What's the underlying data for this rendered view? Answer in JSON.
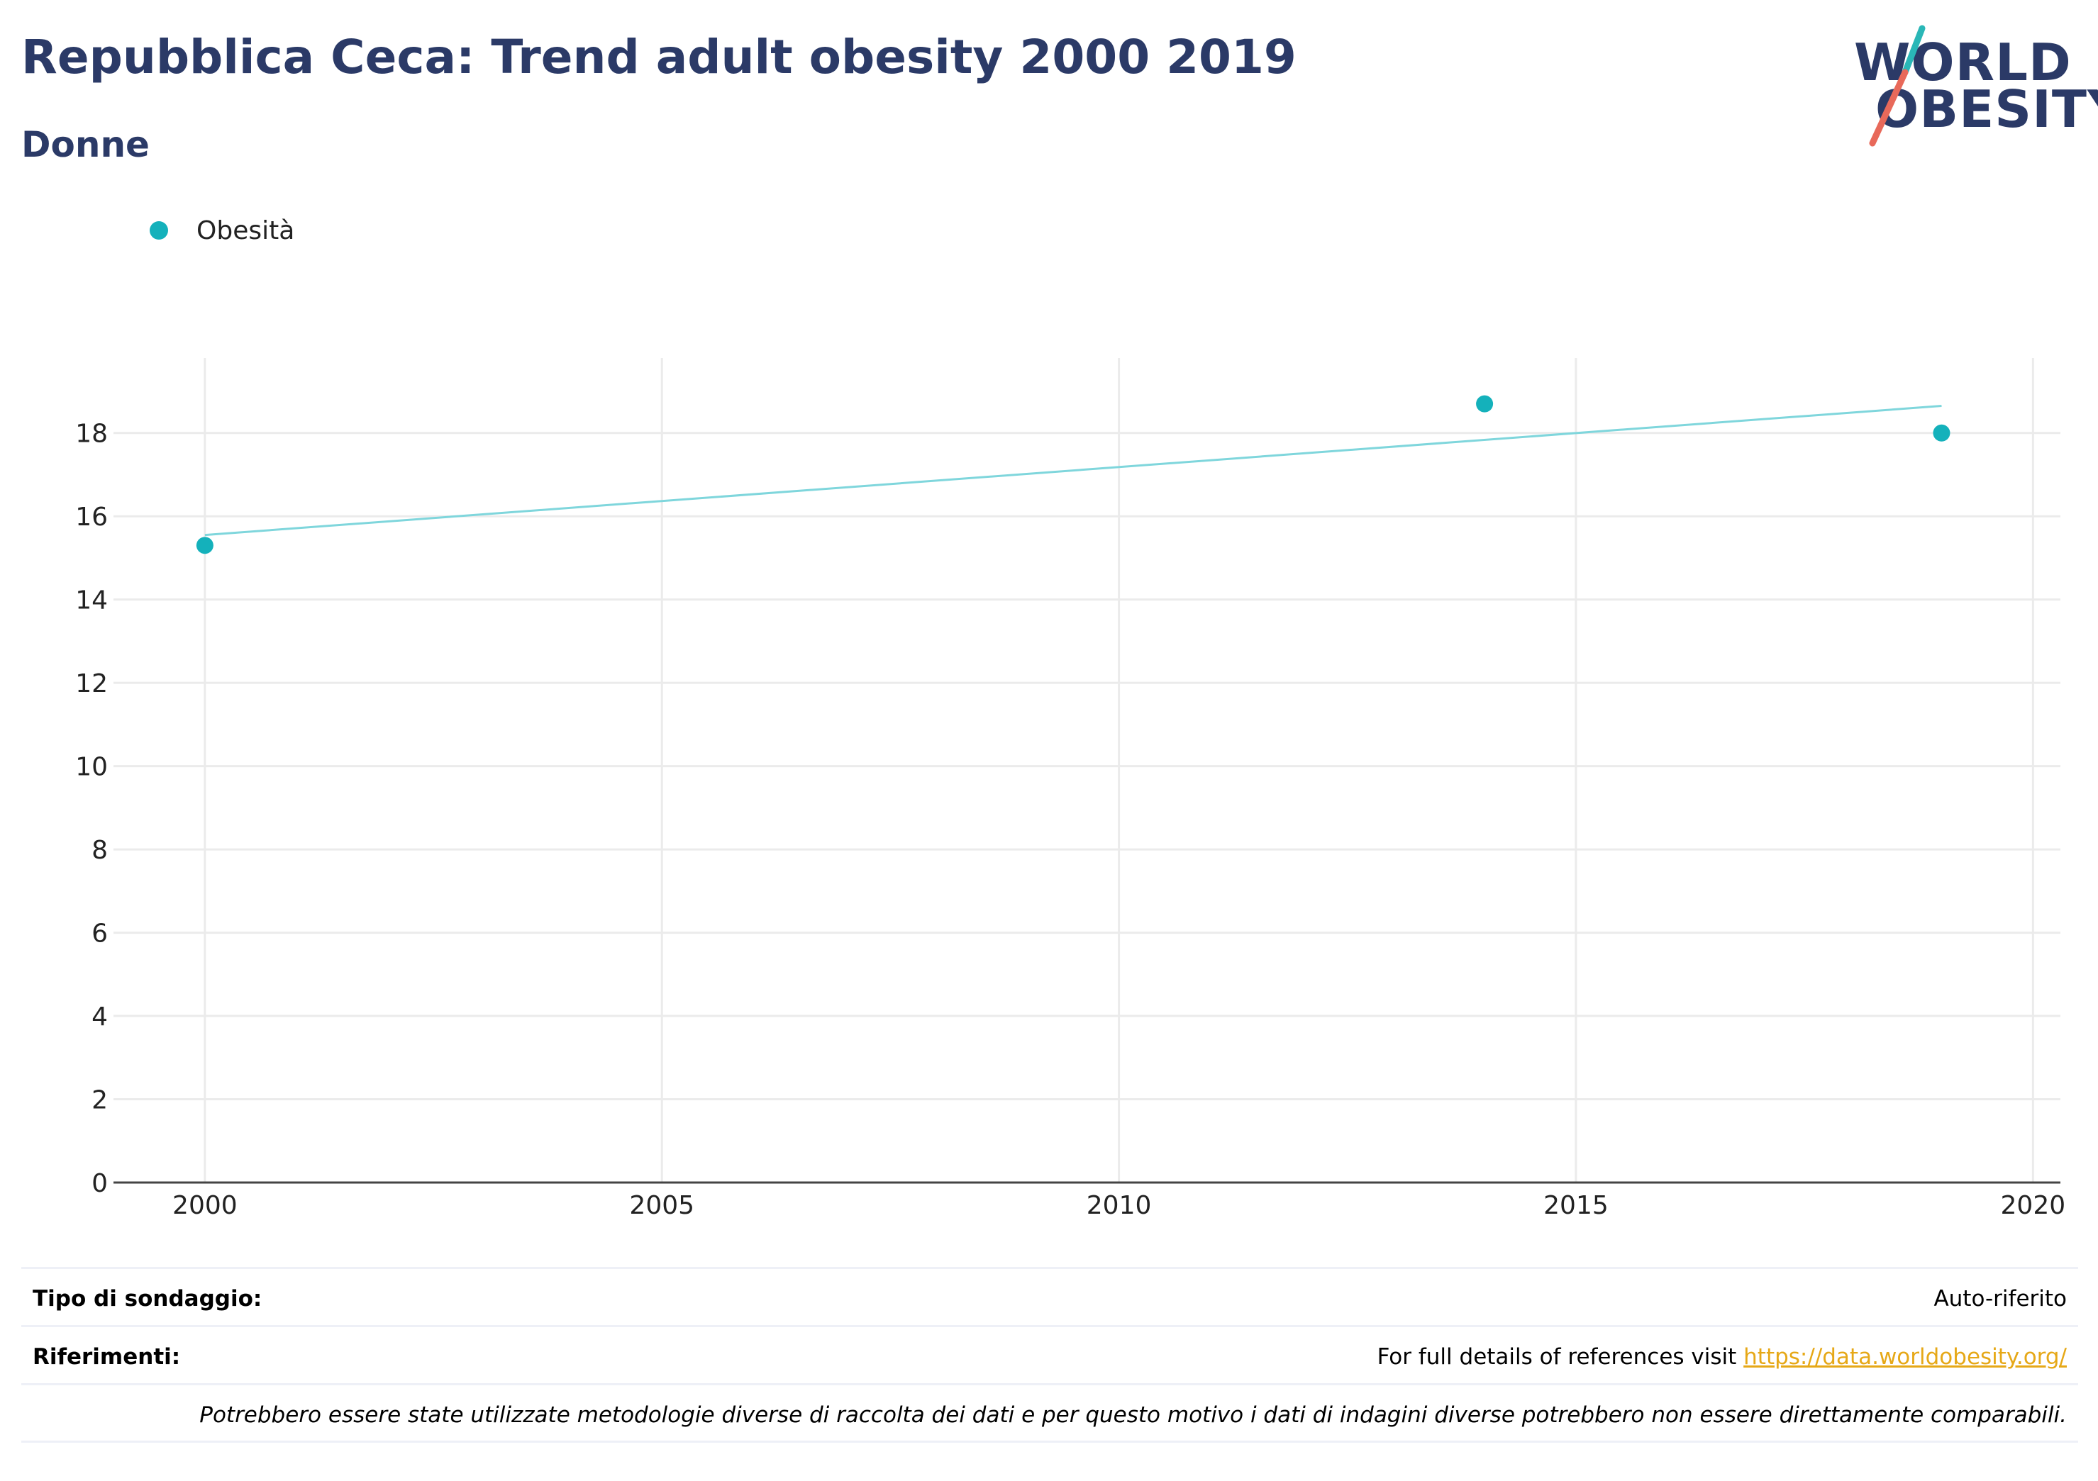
{
  "header": {
    "title": "Repubblica Ceca: Trend adult obesity 2000 2019",
    "subtitle": "Donne"
  },
  "logo": {
    "line1": "WORLD",
    "line2": "OBESITY",
    "accent_teal": "#2ab7b7",
    "accent_red": "#e8695a"
  },
  "colors": {
    "title": "#2b3a67",
    "series": "#14b1bb",
    "trend": "#7fd6dc",
    "grid": "#ebebeb",
    "axis": "#444444",
    "link": "#e6a817"
  },
  "chart_data": {
    "type": "scatter",
    "title": "Repubblica Ceca: Trend adult obesity 2000 2019",
    "subtitle": "Donne",
    "xlabel": "",
    "ylabel": "",
    "xlim": [
      1999,
      2020.3
    ],
    "ylim": [
      0,
      19.8
    ],
    "xticks": [
      2000,
      2005,
      2010,
      2015,
      2020
    ],
    "yticks": [
      0,
      2,
      4,
      6,
      8,
      10,
      12,
      14,
      16,
      18
    ],
    "grid": true,
    "legend_position": "top-left",
    "series": [
      {
        "name": "Obesità",
        "x": [
          2000,
          2014,
          2019
        ],
        "y": [
          15.3,
          18.7,
          18.0
        ]
      }
    ],
    "trendline": {
      "x": [
        2000,
        2019
      ],
      "y": [
        15.55,
        18.65
      ]
    }
  },
  "footer": {
    "survey_label": "Tipo di sondaggio:",
    "survey_value": "Auto-riferito",
    "refs_label": "Riferimenti:",
    "refs_text": "For full details of references visit ",
    "refs_link": "https://data.worldobesity.org/",
    "note": "Potrebbero essere state utilizzate metodologie diverse di raccolta dei dati e per questo motivo i dati di indagini diverse potrebbero non essere direttamente comparabili."
  }
}
